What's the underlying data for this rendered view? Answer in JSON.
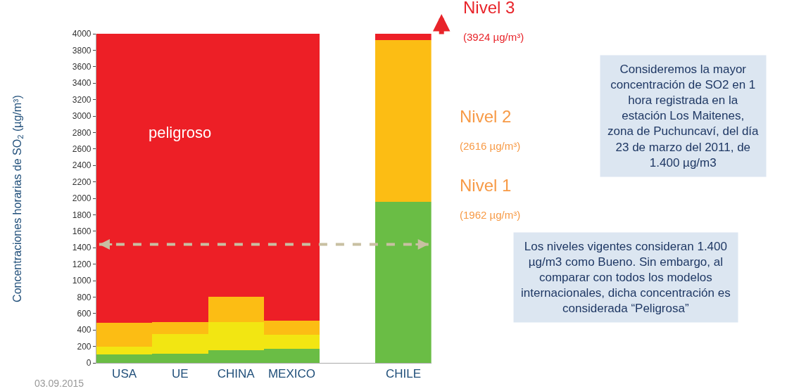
{
  "chart_data": {
    "type": "bar",
    "stacked": true,
    "ylabel": "Concentraciones horarias de SO$_{2}$ (µg/m³)",
    "categories": [
      "USA",
      "UE",
      "CHINA",
      "MEXICO",
      null,
      "CHILE"
    ],
    "series": [
      {
        "color": "#6abd45",
        "values": [
          100,
          110,
          150,
          170,
          null,
          1960
        ]
      },
      {
        "color": "#f2e612",
        "values": [
          100,
          240,
          350,
          170,
          null,
          null
        ]
      },
      {
        "color": "#fcbd14",
        "values": [
          290,
          150,
          300,
          170,
          null,
          540
        ]
      },
      {
        "color": "#fcbd14",
        "values": [
          null,
          null,
          null,
          null,
          null,
          1420
        ]
      },
      {
        "color": "#ed1f26",
        "values": [
          3510,
          3500,
          3200,
          3490,
          null,
          80
        ]
      }
    ],
    "ylim": [
      0,
      4000
    ],
    "yticks": [
      0,
      200,
      400,
      600,
      800,
      1000,
      1200,
      1400,
      1600,
      1800,
      2000,
      2200,
      2400,
      2600,
      2800,
      3000,
      3200,
      3400,
      3600,
      3800,
      4000
    ],
    "ref_lines": [
      {
        "axis": "y",
        "value": 1440,
        "color": "#c8c0a2",
        "line_style": "dashed"
      }
    ],
    "annotations": [
      "peligroso",
      "Nivel 3",
      "(3924 µg/m³)",
      "Nivel 2",
      "(2616 µg/m³)",
      "Nivel 1",
      "(1962 µg/m³)",
      "Consideremos la mayor\nconcentración de SO2 en 1\nhora registrada en la\nestación Los Maitenes,\nzona de Puchuncaví, del día\n23 de marzo del 2011, de\n1.400 µg/m3",
      "Los niveles vigentes consideran 1.400\nµg/m3 como Bueno. Sin embargo, al\ncomparar con todos los modelos\ninternacionales, dicha concentración es\nconsiderada “Peligrosa”",
      "03.09.2015"
    ]
  }
}
